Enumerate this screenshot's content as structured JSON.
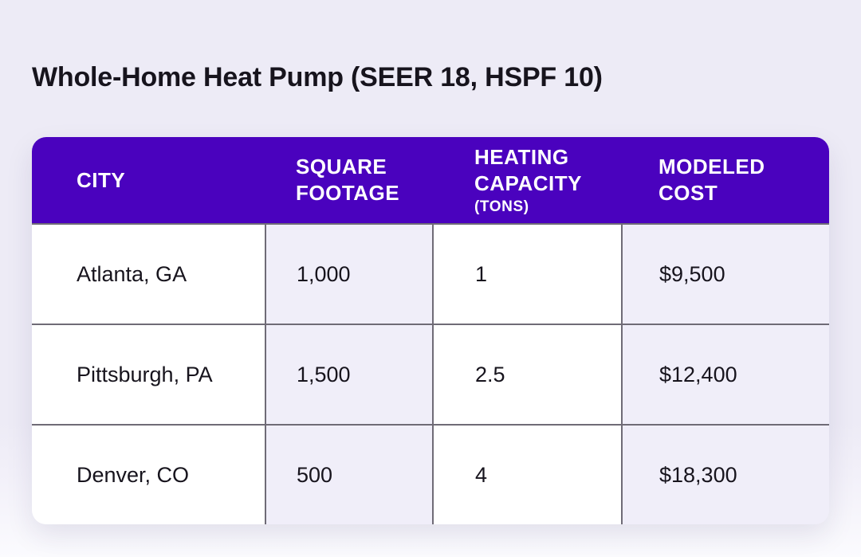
{
  "page": {
    "title": "Whole-Home Heat Pump (SEER 18, HSPF 10)"
  },
  "table": {
    "header": [
      {
        "label": "CITY"
      },
      {
        "label": "SQUARE FOOTAGE"
      },
      {
        "label": "HEATING CAPACITY",
        "sublabel": "(TONS)"
      },
      {
        "label": "MODELED COST"
      }
    ],
    "rows": [
      {
        "city": "Atlanta, GA",
        "square_footage": "1,000",
        "heating_capacity_tons": "1",
        "modeled_cost": "$9,500"
      },
      {
        "city": "Pittsburgh, PA",
        "square_footage": "1,500",
        "heating_capacity_tons": "2.5",
        "modeled_cost": "$12,400"
      },
      {
        "city": "Denver, CO",
        "square_footage": "500",
        "heating_capacity_tons": "4",
        "modeled_cost": "$18,300"
      }
    ]
  },
  "chart_data": {
    "type": "table",
    "title": "Whole-Home Heat Pump (SEER 18, HSPF 10)",
    "columns": [
      "CITY",
      "SQUARE FOOTAGE",
      "HEATING CAPACITY (TONS)",
      "MODELED COST"
    ],
    "rows": [
      [
        "Atlanta, GA",
        "1,000",
        "1",
        "$9,500"
      ],
      [
        "Pittsburgh, PA",
        "1,500",
        "2.5",
        "$12,400"
      ],
      [
        "Denver, CO",
        "500",
        "4",
        "$18,300"
      ]
    ]
  },
  "colors": {
    "header_background": "#4A02BE",
    "header_text": "#FFFFFF",
    "alt_column_background": "#F0EEF9",
    "row_background": "#FFFFFF",
    "grid_border": "#6F6B76",
    "page_background": "#EDEBF6",
    "body_text": "#17141D"
  }
}
